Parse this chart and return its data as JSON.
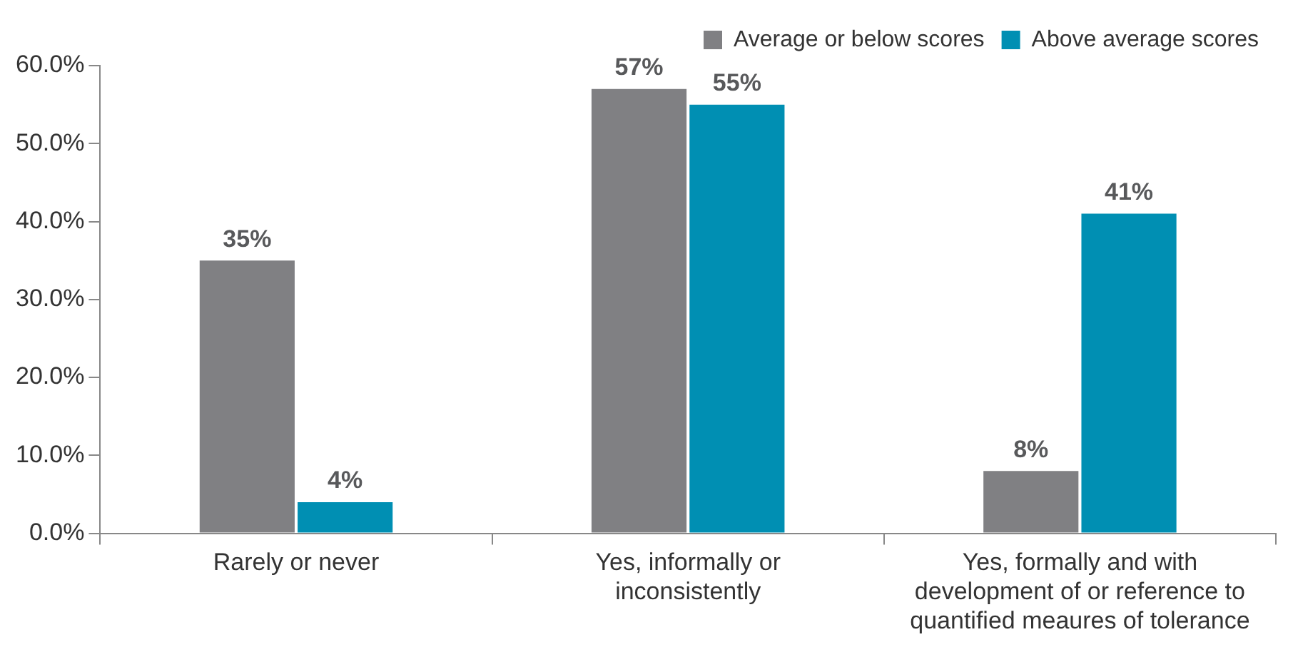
{
  "chart_data": {
    "type": "bar",
    "categories": [
      "Rarely or never",
      "Yes, informally or inconsistently",
      "Yes, formally and with development of or reference to quantified meaures of tolerance"
    ],
    "series": [
      {
        "name": "Average or below scores",
        "color": "#808083",
        "values": [
          35,
          57,
          8
        ],
        "value_labels": [
          "35%",
          "57%",
          "8%"
        ]
      },
      {
        "name": "Above average scores",
        "color": "#008fb3",
        "values": [
          4,
          55,
          41
        ],
        "value_labels": [
          "4%",
          "55%",
          "41%"
        ]
      }
    ],
    "ylim": [
      0,
      60
    ],
    "yticks": [
      {
        "value": 0,
        "label": "0.0%"
      },
      {
        "value": 10,
        "label": "10.0%"
      },
      {
        "value": 20,
        "label": "20.0%"
      },
      {
        "value": 30,
        "label": "30.0%"
      },
      {
        "value": 40,
        "label": "40.0%"
      },
      {
        "value": 50,
        "label": "50.0%"
      },
      {
        "value": 60,
        "label": "60.0%"
      }
    ],
    "grid": false,
    "legend": "top right"
  }
}
